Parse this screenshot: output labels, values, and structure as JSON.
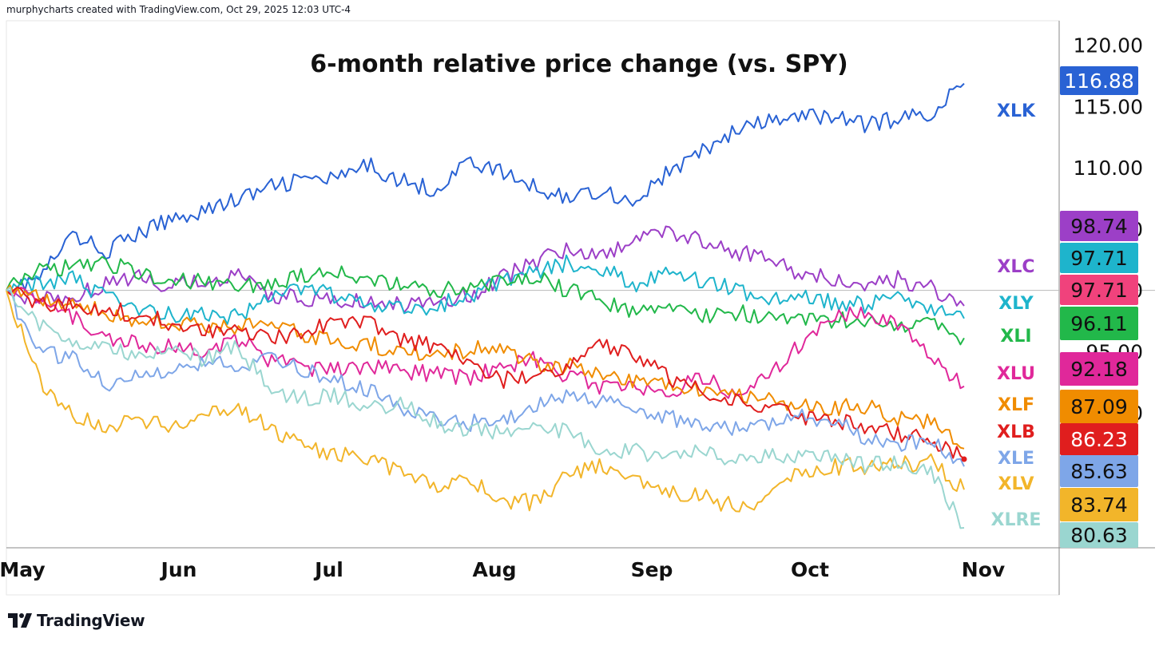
{
  "header": {
    "attribution": "murphycharts created with TradingView.com, Oct 29, 2025 12:03 UTC-4"
  },
  "footer": {
    "brand": "TradingView"
  },
  "chart_data": {
    "type": "line",
    "title": "6-month relative price change (vs. SPY)",
    "x_ticks": [
      "May",
      "Jun",
      "Jul",
      "Aug",
      "Sep",
      "Oct",
      "Nov"
    ],
    "y_ticks": [
      120,
      115,
      110,
      105,
      100,
      95,
      90
    ],
    "ylim": [
      79,
      122
    ],
    "baseline": 100,
    "series": [
      {
        "name": "XLK",
        "last": "116.88",
        "color": "#2962d4",
        "values": [
          100,
          101,
          104.5,
          103.2,
          104.6,
          105.8,
          106.6,
          107.4,
          108.4,
          109.1,
          109.0,
          110.2,
          108.9,
          108.2,
          110.6,
          109.6,
          108.4,
          107.6,
          108.2,
          107.2,
          109.5,
          111.2,
          112.9,
          113.7,
          114.1,
          114.3,
          113.5,
          114.0,
          114.5,
          116.88
        ]
      },
      {
        "name": "XLC",
        "last": "98.74",
        "color": "#9c3fc7",
        "values": [
          100,
          99.2,
          99.6,
          100.5,
          101.0,
          100.4,
          100.6,
          101.2,
          99.6,
          99.3,
          99.0,
          99.1,
          98.7,
          99.2,
          99.6,
          101.0,
          102.3,
          103.4,
          103.0,
          104.1,
          104.8,
          104.3,
          103.2,
          102.6,
          101.4,
          101.0,
          100.6,
          100.9,
          100.2,
          98.74
        ]
      },
      {
        "name": "XLY",
        "last": "97.71",
        "color": "#1eb4cc",
        "values": [
          100,
          100.6,
          101.0,
          99.4,
          98.6,
          98.1,
          98.0,
          97.8,
          99.3,
          100.2,
          99.6,
          98.8,
          98.4,
          98.7,
          99.6,
          100.6,
          101.6,
          102.2,
          101.9,
          100.5,
          101.7,
          100.9,
          100.2,
          99.3,
          99.5,
          99.0,
          98.8,
          99.5,
          98.4,
          97.71
        ]
      },
      {
        "name": "XLI",
        "last": "96.11",
        "color": "#22b84a",
        "values": [
          100,
          101.5,
          102.0,
          102.3,
          101.4,
          101.0,
          100.7,
          100.2,
          100.6,
          101.2,
          101.7,
          101.0,
          100.4,
          100.1,
          100.3,
          100.8,
          101.0,
          100.0,
          99.2,
          98.3,
          98.6,
          97.9,
          98.2,
          97.9,
          97.6,
          97.5,
          97.7,
          97.0,
          97.4,
          96.11
        ]
      },
      {
        "name": "XLU",
        "last": "92.18",
        "color": "#e0289a",
        "values": [
          100,
          99.4,
          97.8,
          96.2,
          95.6,
          95.4,
          95.0,
          96.1,
          94.3,
          93.7,
          93.6,
          93.9,
          93.4,
          93.2,
          92.9,
          93.8,
          94.4,
          93.0,
          92.2,
          91.9,
          91.6,
          92.9,
          91.7,
          92.8,
          95.6,
          98.0,
          98.4,
          97.0,
          94.4,
          92.18
        ]
      },
      {
        "name": "XLF",
        "last": "87.09",
        "color": "#f08c00",
        "values": [
          100,
          99.3,
          99.0,
          98.1,
          97.5,
          97.3,
          97.0,
          96.8,
          97.4,
          96.4,
          95.8,
          95.6,
          94.9,
          94.7,
          95.2,
          95.4,
          94.0,
          93.8,
          93.3,
          92.6,
          92.4,
          91.9,
          91.4,
          91.0,
          90.8,
          90.4,
          90.6,
          89.5,
          89.2,
          87.09
        ]
      },
      {
        "name": "XLB",
        "last": "86.23",
        "color": "#e01e1e",
        "values": [
          100,
          99.0,
          98.8,
          98.5,
          98.0,
          97.4,
          96.6,
          97.0,
          96.2,
          96.4,
          97.6,
          97.2,
          95.9,
          95.4,
          94.1,
          92.7,
          93.1,
          94.0,
          95.4,
          94.8,
          92.9,
          91.9,
          91.3,
          90.4,
          89.7,
          89.4,
          89.0,
          88.3,
          87.8,
          86.23
        ]
      },
      {
        "name": "XLE",
        "last": "85.63",
        "color": "#7ea6e8",
        "values": [
          100,
          95.0,
          94.5,
          92.4,
          92.9,
          93.3,
          94.1,
          94.0,
          94.3,
          93.6,
          92.7,
          91.9,
          90.4,
          89.6,
          89.2,
          89.3,
          90.6,
          91.7,
          91.0,
          90.2,
          89.7,
          88.8,
          88.6,
          89.0,
          89.6,
          89.5,
          88.1,
          87.3,
          88.1,
          85.63
        ]
      },
      {
        "name": "XLV",
        "last": "83.74",
        "color": "#f2b52a",
        "values": [
          100,
          92.5,
          89.7,
          89.0,
          89.5,
          89.0,
          90.1,
          90.4,
          88.9,
          87.2,
          86.6,
          86.2,
          85.3,
          83.7,
          84.5,
          82.9,
          82.7,
          84.8,
          85.7,
          84.7,
          83.6,
          83.2,
          82.4,
          82.8,
          85.1,
          85.6,
          85.7,
          85.8,
          86.0,
          83.74
        ]
      },
      {
        "name": "XLRE",
        "last": "80.63",
        "color": "#9ad6d0",
        "values": [
          100,
          97.2,
          96.0,
          95.1,
          94.7,
          95.2,
          94.4,
          95.4,
          91.8,
          91.1,
          91.4,
          90.6,
          90.6,
          89.2,
          88.7,
          88.4,
          89.0,
          88.4,
          86.7,
          86.9,
          86.4,
          86.8,
          86.0,
          86.5,
          86.3,
          86.5,
          85.8,
          85.9,
          85.2,
          80.63
        ]
      }
    ],
    "extra_price_labels": [
      {
        "text": "97.71",
        "color": "#f0427c"
      }
    ]
  }
}
